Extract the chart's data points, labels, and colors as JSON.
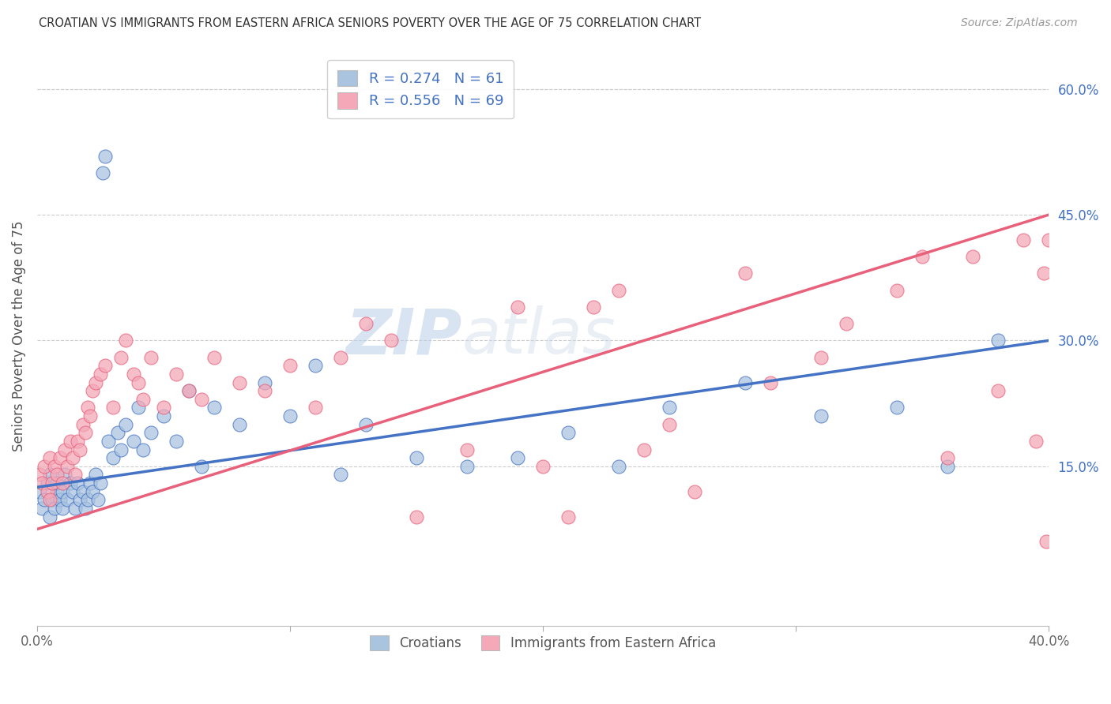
{
  "title": "CROATIAN VS IMMIGRANTS FROM EASTERN AFRICA SENIORS POVERTY OVER THE AGE OF 75 CORRELATION CHART",
  "source": "Source: ZipAtlas.com",
  "ylabel": "Seniors Poverty Over the Age of 75",
  "xlim": [
    0.0,
    0.4
  ],
  "ylim": [
    -0.04,
    0.65
  ],
  "x_ticks": [
    0.0,
    0.1,
    0.2,
    0.3,
    0.4
  ],
  "x_tick_labels": [
    "0.0%",
    "",
    "",
    "",
    "40.0%"
  ],
  "y_tick_labels_right": [
    "15.0%",
    "30.0%",
    "45.0%",
    "60.0%"
  ],
  "y_ticks_right": [
    0.15,
    0.3,
    0.45,
    0.6
  ],
  "color_croatian": "#aac4e0",
  "color_eastern_africa": "#f4a8b8",
  "color_line_croatian": "#4472c4",
  "color_line_eastern_africa": "#e8607a",
  "watermark": "ZIPatlas",
  "croatian_x": [
    0.001,
    0.002,
    0.003,
    0.004,
    0.005,
    0.005,
    0.006,
    0.007,
    0.008,
    0.008,
    0.009,
    0.01,
    0.01,
    0.011,
    0.012,
    0.013,
    0.014,
    0.015,
    0.016,
    0.017,
    0.018,
    0.019,
    0.02,
    0.021,
    0.022,
    0.023,
    0.024,
    0.025,
    0.026,
    0.027,
    0.028,
    0.03,
    0.032,
    0.033,
    0.035,
    0.038,
    0.04,
    0.042,
    0.045,
    0.05,
    0.055,
    0.06,
    0.065,
    0.07,
    0.08,
    0.09,
    0.1,
    0.11,
    0.12,
    0.13,
    0.15,
    0.17,
    0.19,
    0.21,
    0.23,
    0.25,
    0.28,
    0.31,
    0.34,
    0.36,
    0.38
  ],
  "croatian_y": [
    0.12,
    0.1,
    0.11,
    0.13,
    0.09,
    0.14,
    0.11,
    0.1,
    0.12,
    0.13,
    0.11,
    0.12,
    0.1,
    0.14,
    0.11,
    0.13,
    0.12,
    0.1,
    0.13,
    0.11,
    0.12,
    0.1,
    0.11,
    0.13,
    0.12,
    0.14,
    0.11,
    0.13,
    0.5,
    0.52,
    0.18,
    0.16,
    0.19,
    0.17,
    0.2,
    0.18,
    0.22,
    0.17,
    0.19,
    0.21,
    0.18,
    0.24,
    0.15,
    0.22,
    0.2,
    0.25,
    0.21,
    0.27,
    0.14,
    0.2,
    0.16,
    0.15,
    0.16,
    0.19,
    0.15,
    0.22,
    0.25,
    0.21,
    0.22,
    0.15,
    0.3
  ],
  "eastern_africa_x": [
    0.001,
    0.002,
    0.003,
    0.004,
    0.005,
    0.005,
    0.006,
    0.007,
    0.008,
    0.009,
    0.01,
    0.011,
    0.012,
    0.013,
    0.014,
    0.015,
    0.016,
    0.017,
    0.018,
    0.019,
    0.02,
    0.021,
    0.022,
    0.023,
    0.025,
    0.027,
    0.03,
    0.033,
    0.035,
    0.038,
    0.04,
    0.042,
    0.045,
    0.05,
    0.055,
    0.06,
    0.065,
    0.07,
    0.08,
    0.09,
    0.1,
    0.11,
    0.12,
    0.13,
    0.14,
    0.15,
    0.17,
    0.19,
    0.2,
    0.21,
    0.22,
    0.23,
    0.24,
    0.25,
    0.26,
    0.28,
    0.29,
    0.31,
    0.32,
    0.34,
    0.35,
    0.36,
    0.37,
    0.38,
    0.39,
    0.395,
    0.398,
    0.399,
    0.4
  ],
  "eastern_africa_y": [
    0.14,
    0.13,
    0.15,
    0.12,
    0.16,
    0.11,
    0.13,
    0.15,
    0.14,
    0.16,
    0.13,
    0.17,
    0.15,
    0.18,
    0.16,
    0.14,
    0.18,
    0.17,
    0.2,
    0.19,
    0.22,
    0.21,
    0.24,
    0.25,
    0.26,
    0.27,
    0.22,
    0.28,
    0.3,
    0.26,
    0.25,
    0.23,
    0.28,
    0.22,
    0.26,
    0.24,
    0.23,
    0.28,
    0.25,
    0.24,
    0.27,
    0.22,
    0.28,
    0.32,
    0.3,
    0.09,
    0.17,
    0.34,
    0.15,
    0.09,
    0.34,
    0.36,
    0.17,
    0.2,
    0.12,
    0.38,
    0.25,
    0.28,
    0.32,
    0.36,
    0.4,
    0.16,
    0.4,
    0.24,
    0.42,
    0.18,
    0.38,
    0.06,
    0.42
  ]
}
